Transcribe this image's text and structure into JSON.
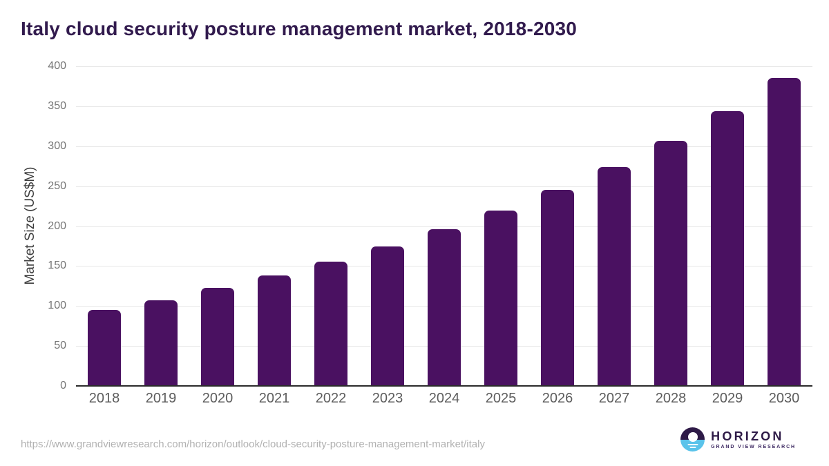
{
  "chart_data": {
    "type": "bar",
    "title": "Italy cloud security posture management market, 2018-2030",
    "categories": [
      "2018",
      "2019",
      "2020",
      "2021",
      "2022",
      "2023",
      "2024",
      "2025",
      "2026",
      "2027",
      "2028",
      "2029",
      "2030"
    ],
    "values": [
      94.7,
      106.8,
      122.3,
      137.9,
      155.3,
      174.4,
      196.1,
      219.7,
      245.1,
      274.0,
      306.7,
      343.5,
      385.2
    ],
    "series_name": "Market Size (US$M)",
    "xlabel": "",
    "ylabel": "Market Size (US$M)",
    "ylim": [
      0,
      400
    ],
    "yticks": [
      0,
      50,
      100,
      150,
      200,
      250,
      300,
      350,
      400
    ],
    "grid": "horizontal",
    "legend": "none"
  },
  "footer": {
    "source_url": "https://www.grandviewresearch.com/horizon/outlook/cloud-security-posture-management-market/italy",
    "logo_name": "HORIZON",
    "logo_subtitle": "GRAND VIEW RESEARCH"
  },
  "icons": {
    "logo_mark": "horizon-sunrise-circle"
  },
  "colors": {
    "background": "#ffffff",
    "bar": "#4a1161",
    "title": "#311a4d",
    "grid": "#e7e7e7",
    "axis_line": "#2b2b2b",
    "y_tick_label": "#757575",
    "x_tick_label": "#5c5c5c",
    "source_url": "#b1b1b1",
    "logo_navy": "#2e1a47",
    "logo_blue": "#5ac3ea"
  }
}
